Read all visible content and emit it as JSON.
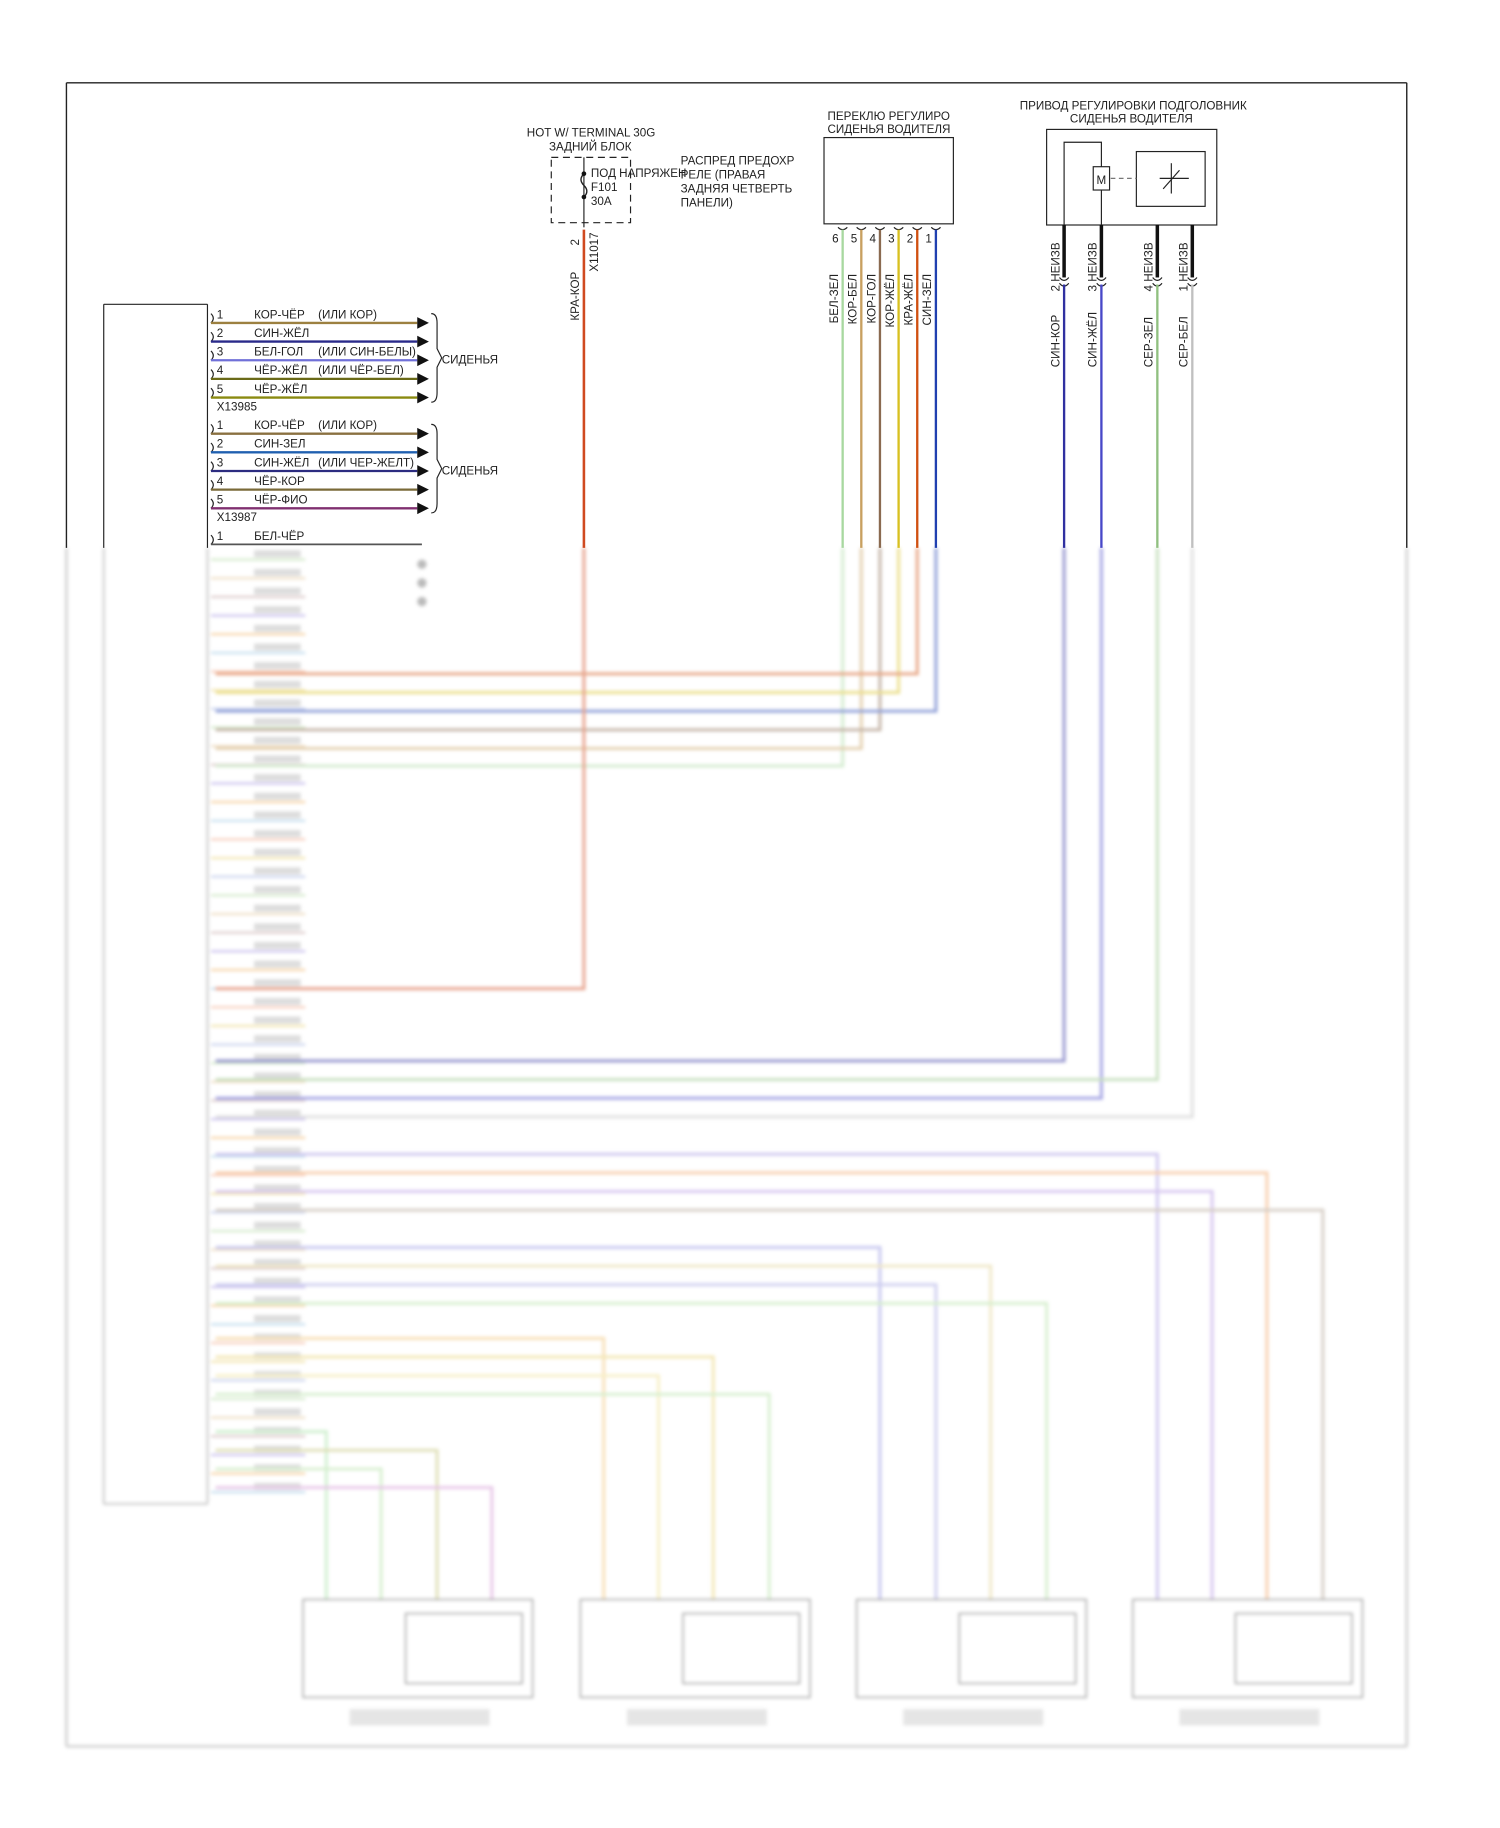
{
  "left_module": {
    "connectors": [
      {
        "id": "X13985",
        "dest": "СИДЕНЬЯ",
        "pins": [
          {
            "pin": "1",
            "wire": "КОР-ЧЁР",
            "alt": "(ИЛИ КОР)",
            "color": "#9c8040"
          },
          {
            "pin": "2",
            "wire": "СИН-ЖЁЛ",
            "alt": "",
            "color": "#2a2a8a"
          },
          {
            "pin": "3",
            "wire": "БЕЛ-ГОЛ",
            "alt": "(ИЛИ СИН-БЕЛЫ)",
            "color": "#7070d8"
          },
          {
            "pin": "4",
            "wire": "ЧЁР-ЖЁЛ",
            "alt": "(ИЛИ ЧЁР-БЕЛ)",
            "color": "#6a6a18"
          },
          {
            "pin": "5",
            "wire": "ЧЁР-ЖЁЛ",
            "alt": "",
            "color": "#8a8a10"
          }
        ]
      },
      {
        "id": "X13987",
        "dest": "СИДЕНЬЯ",
        "pins": [
          {
            "pin": "1",
            "wire": "КОР-ЧЁР",
            "alt": "(ИЛИ КОР)",
            "color": "#8a7040"
          },
          {
            "pin": "2",
            "wire": "СИН-ЗЕЛ",
            "alt": "",
            "color": "#2060b0"
          },
          {
            "pin": "3",
            "wire": "СИН-ЖЁЛ",
            "alt": "(ИЛИ ЧЕР-ЖЕЛТ)",
            "color": "#2c2c80"
          },
          {
            "pin": "4",
            "wire": "ЧЁР-КОР",
            "alt": "",
            "color": "#7a6a38"
          },
          {
            "pin": "5",
            "wire": "ЧЁР-ФИО",
            "alt": "",
            "color": "#803070"
          }
        ]
      }
    ],
    "extra_pin": {
      "pin": "1",
      "wire": "БЕЛ-ЧЁР",
      "color": "#555555"
    }
  },
  "fuse": {
    "title_line1": "HOT W/ TERMINAL 30G",
    "title_line2": "ЗАДНИЙ БЛОК",
    "inner_label": "ПОД НАПРЯЖЕН",
    "fuse_id": "F101",
    "rating": "30A",
    "desc": [
      "РАСПРЕД ПРЕДОХР",
      "РЕЛЕ (ПРАВАЯ",
      "ЗАДНЯЯ ЧЕТВЕРТЬ",
      "ПАНЕЛИ)"
    ],
    "pin": "2",
    "connector": "X11017",
    "wire": "КРА-КОР",
    "color": "#d04a20"
  },
  "seat_switch": {
    "title_line1": "ПЕРЕКЛЮ РЕГУЛИРО",
    "title_line2": "СИДЕНЬЯ ВОДИТЕЛЯ",
    "pins": [
      {
        "pin": "6",
        "wire": "БЕЛ-ЗЕЛ",
        "color": "#a8d8a0"
      },
      {
        "pin": "5",
        "wire": "КОР-БЕЛ",
        "color": "#c8a060"
      },
      {
        "pin": "4",
        "wire": "КОР-ГОЛ",
        "color": "#8a6a50"
      },
      {
        "pin": "3",
        "wire": "КОР-ЖЁЛ",
        "color": "#d8c020"
      },
      {
        "pin": "2",
        "wire": "КРА-ЖЁЛ",
        "color": "#d05010"
      },
      {
        "pin": "1",
        "wire": "СИН-ЗЕЛ",
        "color": "#2040b0"
      }
    ]
  },
  "headrest_motor": {
    "title_line1": "ПРИВОД РЕГУЛИРОВКИ ПОДГОЛОВНИК",
    "title_line2": "СИДЕНЬЯ ВОДИТЕЛЯ",
    "motor_label": "M",
    "pins": [
      {
        "pin": "2",
        "side": "НЕИЗВ",
        "wire": "СИН-КОР",
        "color": "#3030a0"
      },
      {
        "pin": "3",
        "side": "НЕИЗВ",
        "wire": "СИН-ЖЁЛ",
        "color": "#4848c8"
      },
      {
        "pin": "4",
        "side": "НЕИЗВ",
        "wire": "СЕР-ЗЕЛ",
        "color": "#90c080"
      },
      {
        "pin": "1",
        "side": "НЕИЗВ",
        "wire": "СЕР-БЕЛ",
        "color": "#c0c0c0"
      }
    ]
  }
}
